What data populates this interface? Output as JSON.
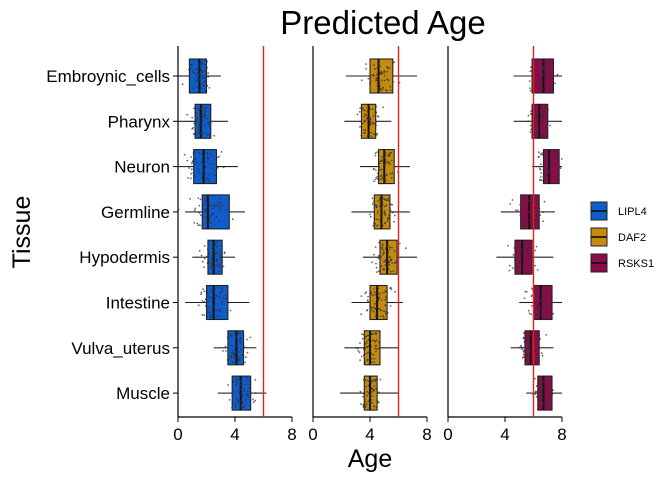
{
  "chart_data": {
    "type": "boxplot",
    "title": "Predicted Age",
    "xlabel": "Age",
    "ylabel": "Tissue",
    "xlim": [
      0,
      8
    ],
    "x_ticks": [
      0,
      4,
      8
    ],
    "reference_line": 6,
    "reference_line_color": "#e3211c",
    "categories": [
      "Embroynic_cells",
      "Pharynx",
      "Neuron",
      "Germline",
      "Hypodermis",
      "Intestine",
      "Vulva_uterus",
      "Muscle"
    ],
    "legend_position": "right",
    "points_overlaid": true,
    "series": [
      {
        "name": "LIPL4",
        "color": "#0f5ccb",
        "boxes": [
          {
            "q1": 0.8,
            "median": 1.5,
            "q3": 2.0,
            "wmin": 0.0,
            "wmax": 3.0
          },
          {
            "q1": 1.2,
            "median": 1.6,
            "q3": 2.3,
            "wmin": 0.0,
            "wmax": 3.5
          },
          {
            "q1": 1.1,
            "median": 1.8,
            "q3": 2.7,
            "wmin": 0.0,
            "wmax": 4.2
          },
          {
            "q1": 1.7,
            "median": 2.1,
            "q3": 3.6,
            "wmin": 0.5,
            "wmax": 4.7
          },
          {
            "q1": 2.1,
            "median": 2.5,
            "q3": 3.1,
            "wmin": 1.0,
            "wmax": 4.0
          },
          {
            "q1": 2.0,
            "median": 2.5,
            "q3": 3.5,
            "wmin": 0.5,
            "wmax": 5.0
          },
          {
            "q1": 3.5,
            "median": 4.1,
            "q3": 4.6,
            "wmin": 2.5,
            "wmax": 5.5
          },
          {
            "q1": 3.8,
            "median": 4.4,
            "q3": 5.1,
            "wmin": 2.8,
            "wmax": 6.2
          }
        ]
      },
      {
        "name": "DAF2",
        "color": "#c58a10",
        "boxes": [
          {
            "q1": 4.0,
            "median": 4.6,
            "q3": 5.6,
            "wmin": 2.3,
            "wmax": 7.3
          },
          {
            "q1": 3.4,
            "median": 3.9,
            "q3": 4.4,
            "wmin": 2.2,
            "wmax": 5.5
          },
          {
            "q1": 4.6,
            "median": 5.0,
            "q3": 5.7,
            "wmin": 3.3,
            "wmax": 6.8
          },
          {
            "q1": 4.3,
            "median": 4.8,
            "q3": 5.4,
            "wmin": 2.7,
            "wmax": 6.8
          },
          {
            "q1": 4.7,
            "median": 5.2,
            "q3": 5.9,
            "wmin": 3.5,
            "wmax": 7.3
          },
          {
            "q1": 4.0,
            "median": 4.5,
            "q3": 5.2,
            "wmin": 2.7,
            "wmax": 6.3
          },
          {
            "q1": 3.6,
            "median": 4.0,
            "q3": 4.7,
            "wmin": 2.2,
            "wmax": 6.0
          },
          {
            "q1": 3.6,
            "median": 4.0,
            "q3": 4.5,
            "wmin": 1.9,
            "wmax": 6.0
          }
        ]
      },
      {
        "name": "RSKS1",
        "color": "#8c0b4b",
        "boxes": [
          {
            "q1": 5.9,
            "median": 6.7,
            "q3": 7.4,
            "wmin": 4.6,
            "wmax": 8.0
          },
          {
            "q1": 5.9,
            "median": 6.4,
            "q3": 7.0,
            "wmin": 4.6,
            "wmax": 8.0
          },
          {
            "q1": 6.7,
            "median": 7.1,
            "q3": 7.8,
            "wmin": 5.9,
            "wmax": 8.0
          },
          {
            "q1": 5.1,
            "median": 5.7,
            "q3": 6.4,
            "wmin": 3.7,
            "wmax": 7.5
          },
          {
            "q1": 4.7,
            "median": 5.2,
            "q3": 5.9,
            "wmin": 3.4,
            "wmax": 7.4
          },
          {
            "q1": 6.0,
            "median": 6.5,
            "q3": 7.3,
            "wmin": 5.0,
            "wmax": 8.0
          },
          {
            "q1": 5.4,
            "median": 5.8,
            "q3": 6.4,
            "wmin": 4.4,
            "wmax": 7.4
          },
          {
            "q1": 6.3,
            "median": 6.7,
            "q3": 7.3,
            "wmin": 5.5,
            "wmax": 8.0
          }
        ]
      }
    ]
  }
}
